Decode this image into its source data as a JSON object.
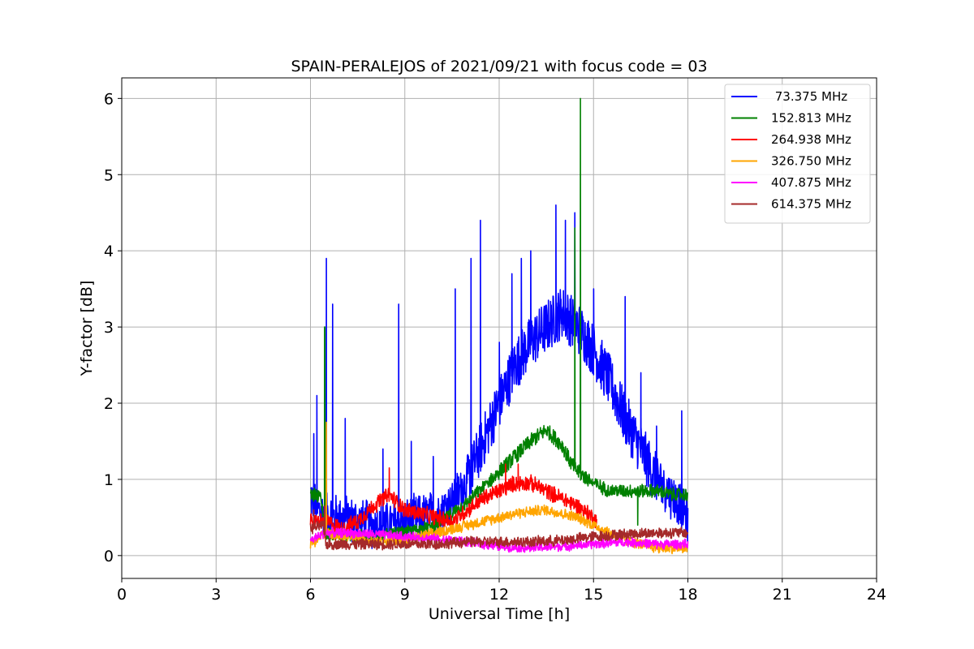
{
  "chart_data": {
    "type": "line",
    "title": "SPAIN-PERALEJOS of 2021/09/21 with focus code = 03",
    "xlabel": "Universal Time [h]",
    "ylabel": "Y-factor [dB]",
    "xlim": [
      0,
      24
    ],
    "ylim": [
      -0.3,
      6.27
    ],
    "xticks": [
      0,
      3,
      6,
      9,
      12,
      15,
      18,
      21,
      24
    ],
    "yticks": [
      0,
      1,
      2,
      3,
      4,
      5,
      6
    ],
    "grid": true,
    "legend_position": "top-right",
    "series": [
      {
        "name": " 73.375 MHz",
        "color": "#0000ff",
        "x": [
          6.0,
          6.2,
          6.5,
          6.7,
          7.0,
          7.5,
          8.0,
          8.5,
          9.0,
          9.5,
          10.0,
          10.5,
          11.0,
          11.5,
          12.0,
          12.5,
          13.0,
          13.5,
          14.0,
          14.5,
          15.0,
          15.5,
          16.0,
          16.5,
          17.0,
          17.5,
          18.0
        ],
        "values": [
          0.8,
          0.6,
          0.55,
          0.5,
          0.5,
          0.45,
          0.4,
          0.4,
          0.45,
          0.5,
          0.55,
          0.7,
          1.0,
          1.5,
          2.0,
          2.5,
          2.8,
          3.0,
          3.2,
          3.0,
          2.7,
          2.3,
          1.8,
          1.4,
          1.0,
          0.8,
          0.5
        ],
        "spikes": [
          [
            6.1,
            1.6
          ],
          [
            6.2,
            2.1
          ],
          [
            6.5,
            3.9
          ],
          [
            6.7,
            3.3
          ],
          [
            7.1,
            1.8
          ],
          [
            8.3,
            1.4
          ],
          [
            8.8,
            3.3
          ],
          [
            9.2,
            1.5
          ],
          [
            9.9,
            1.3
          ],
          [
            10.6,
            3.5
          ],
          [
            11.1,
            3.9
          ],
          [
            11.4,
            4.4
          ],
          [
            12.0,
            2.8
          ],
          [
            12.4,
            3.7
          ],
          [
            12.7,
            3.9
          ],
          [
            13.0,
            4.0
          ],
          [
            13.8,
            4.6
          ],
          [
            14.1,
            4.4
          ],
          [
            14.4,
            4.5
          ],
          [
            15.0,
            3.5
          ],
          [
            16.0,
            3.4
          ],
          [
            16.5,
            2.4
          ],
          [
            17.0,
            1.7
          ],
          [
            17.8,
            1.9
          ]
        ],
        "noise": 0.35
      },
      {
        "name": "152.813 MHz",
        "color": "#008000",
        "x": [
          6.0,
          6.3,
          6.5,
          7.0,
          8.0,
          9.0,
          10.0,
          11.0,
          11.5,
          12.0,
          12.5,
          13.0,
          13.5,
          14.0,
          14.3,
          14.5,
          15.0,
          15.5,
          16.0,
          16.5,
          17.0,
          17.5,
          18.0
        ],
        "values": [
          0.8,
          0.8,
          0.3,
          0.25,
          0.25,
          0.3,
          0.4,
          0.7,
          0.9,
          1.1,
          1.3,
          1.5,
          1.65,
          1.45,
          1.2,
          1.1,
          0.95,
          0.85,
          0.85,
          0.85,
          0.85,
          0.8,
          0.8
        ],
        "spikes": [
          [
            6.45,
            3.0
          ],
          [
            14.4,
            4.3
          ],
          [
            14.58,
            6.0
          ],
          [
            16.4,
            0.4
          ]
        ],
        "noise": 0.1
      },
      {
        "name": "264.938 MHz",
        "color": "#ff0000",
        "x": [
          6.0,
          6.5,
          7.0,
          7.5,
          8.0,
          8.5,
          9.0,
          9.5,
          10.0,
          10.5,
          11.0,
          11.5,
          12.0,
          12.5,
          13.0,
          13.5,
          14.0,
          14.5,
          15.0,
          15.1
        ],
        "values": [
          0.45,
          0.45,
          0.35,
          0.45,
          0.65,
          0.8,
          0.6,
          0.55,
          0.5,
          0.45,
          0.6,
          0.75,
          0.85,
          0.95,
          0.95,
          0.85,
          0.75,
          0.65,
          0.5,
          0.45
        ],
        "spikes": [
          [
            8.5,
            1.15
          ],
          [
            12.2,
            1.2
          ],
          [
            12.6,
            1.2
          ]
        ],
        "noise": 0.12
      },
      {
        "name": "326.750 MHz",
        "color": "#ffa500",
        "x": [
          6.0,
          6.5,
          7.0,
          8.0,
          9.0,
          10.0,
          11.0,
          12.0,
          12.5,
          13.0,
          13.5,
          14.0,
          14.5,
          15.0,
          15.5,
          16.0,
          17.0,
          18.0
        ],
        "values": [
          0.15,
          0.3,
          0.25,
          0.2,
          0.2,
          0.3,
          0.4,
          0.5,
          0.55,
          0.58,
          0.6,
          0.55,
          0.5,
          0.4,
          0.3,
          0.2,
          0.1,
          0.1
        ],
        "spikes": [
          [
            6.5,
            1.75
          ]
        ],
        "noise": 0.08
      },
      {
        "name": "407.875 MHz",
        "color": "#ff00ff",
        "x": [
          6.0,
          6.5,
          7.0,
          8.0,
          9.0,
          10.0,
          11.0,
          12.0,
          13.0,
          14.0,
          15.0,
          16.0,
          17.0,
          18.0
        ],
        "values": [
          0.2,
          0.3,
          0.3,
          0.28,
          0.25,
          0.22,
          0.18,
          0.12,
          0.1,
          0.12,
          0.15,
          0.18,
          0.15,
          0.15
        ],
        "spikes": [],
        "noise": 0.07
      },
      {
        "name": "614.375 MHz",
        "color": "#a52a2a",
        "x": [
          6.0,
          6.4,
          6.5,
          7.0,
          8.0,
          9.0,
          10.0,
          11.0,
          12.0,
          13.0,
          14.0,
          15.0,
          16.0,
          17.0,
          18.0
        ],
        "values": [
          0.35,
          0.4,
          0.15,
          0.15,
          0.15,
          0.15,
          0.15,
          0.18,
          0.18,
          0.18,
          0.2,
          0.25,
          0.28,
          0.3,
          0.3
        ],
        "spikes": [
          [
            6.1,
            0.6
          ],
          [
            6.45,
            0.65
          ]
        ],
        "noise": 0.08
      }
    ]
  }
}
